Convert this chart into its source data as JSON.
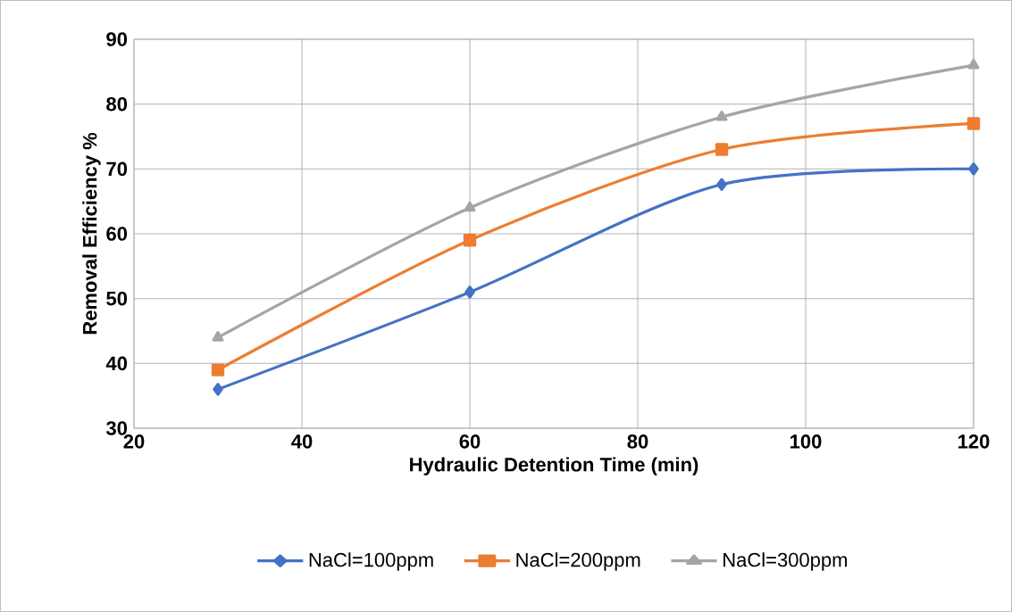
{
  "chart_data": {
    "type": "line",
    "xlabel": "Hydraulic Detention Time (min)",
    "ylabel": "Removal Efficiency %",
    "x": [
      30,
      60,
      90,
      120
    ],
    "series": [
      {
        "name": "NaCl=100ppm",
        "color": "#4472c4",
        "marker": "diamond",
        "values": [
          36,
          51,
          67.6,
          70
        ]
      },
      {
        "name": "NaCl=200ppm",
        "color": "#ed7d31",
        "marker": "square",
        "values": [
          39,
          59,
          73,
          77
        ]
      },
      {
        "name": "NaCl=300ppm",
        "color": "#a5a5a5",
        "marker": "triangle",
        "values": [
          44,
          64,
          78,
          86
        ]
      }
    ],
    "xlim": [
      20,
      120
    ],
    "ylim": [
      30,
      90
    ],
    "xticks": [
      20,
      40,
      60,
      80,
      100,
      120
    ],
    "yticks": [
      30,
      40,
      50,
      60,
      70,
      80,
      90
    ],
    "grid": true,
    "legend": "bottom",
    "line_style": "solid"
  }
}
